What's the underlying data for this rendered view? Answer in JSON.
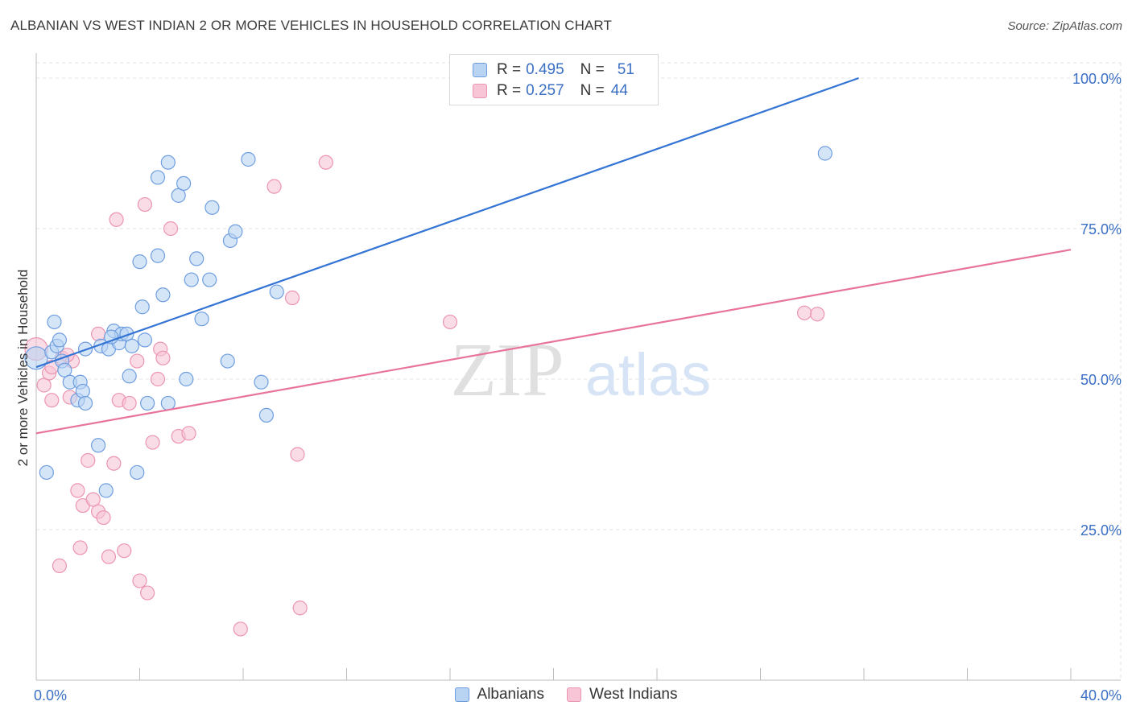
{
  "title": "ALBANIAN VS WEST INDIAN 2 OR MORE VEHICLES IN HOUSEHOLD CORRELATION CHART",
  "source": "Source: ZipAtlas.com",
  "watermark": {
    "zip": "ZIP",
    "atlas": "atlas"
  },
  "legend": {
    "rows": [
      {
        "r_label": "R =",
        "r_value": "0.495",
        "n_label": "N =",
        "n_value": "51"
      },
      {
        "r_label": "R =",
        "r_value": "0.257",
        "n_label": "N =",
        "n_value": "44"
      }
    ]
  },
  "bottom_legend": {
    "albanians": "Albanians",
    "west_indians": "West Indians"
  },
  "colors": {
    "albanian_fill": "#b9d3f3",
    "albanian_stroke": "#6f9ee0",
    "albanian_line": "#3474d4",
    "westindian_fill": "#f7c5d5",
    "westindian_stroke": "#ec95b2",
    "westindian_line": "#e8749c",
    "tick_label": "#3a6fc4",
    "grid": "#e3e3e3"
  },
  "chart_data": {
    "type": "scatter",
    "title": "ALBANIAN VS WEST INDIAN 2 OR MORE VEHICLES IN HOUSEHOLD CORRELATION CHART",
    "xlabel": "",
    "ylabel": "2 or more Vehicles in Household",
    "xlim": [
      0,
      40
    ],
    "ylim": [
      0,
      100
    ],
    "x_tick_labels": [
      {
        "value": 0,
        "label": "0.0%"
      },
      {
        "value": 40,
        "label": "40.0%"
      }
    ],
    "y_tick_labels": [
      {
        "value": 100,
        "label": "100.0%"
      },
      {
        "value": 75,
        "label": "75.0%"
      },
      {
        "value": 50,
        "label": "50.0%"
      },
      {
        "value": 25,
        "label": "25.0%"
      }
    ],
    "x_minor_ticks": [
      4,
      8,
      12,
      16,
      20,
      24,
      28,
      32,
      36,
      40
    ],
    "series": [
      {
        "name": "Albanians",
        "R": 0.495,
        "N": 51,
        "trend": {
          "x0": 0,
          "y0": 52.0,
          "x1": 31.8,
          "y1": 100
        },
        "points": [
          [
            0.0,
            53.5
          ],
          [
            0.4,
            34.5
          ],
          [
            0.6,
            54.5
          ],
          [
            0.7,
            59.5
          ],
          [
            0.8,
            55.5
          ],
          [
            0.9,
            56.5
          ],
          [
            1.0,
            53.0
          ],
          [
            1.1,
            51.5
          ],
          [
            1.3,
            49.5
          ],
          [
            1.6,
            46.5
          ],
          [
            1.7,
            49.5
          ],
          [
            1.8,
            48.0
          ],
          [
            1.9,
            46.0
          ],
          [
            2.4,
            39.0
          ],
          [
            2.5,
            55.5
          ],
          [
            2.7,
            31.5
          ],
          [
            2.8,
            55.0
          ],
          [
            3.0,
            58.0
          ],
          [
            3.2,
            56.0
          ],
          [
            3.3,
            57.5
          ],
          [
            3.5,
            57.5
          ],
          [
            3.6,
            50.5
          ],
          [
            3.7,
            55.5
          ],
          [
            3.9,
            34.5
          ],
          [
            4.2,
            56.5
          ],
          [
            4.3,
            46.0
          ],
          [
            4.0,
            69.5
          ],
          [
            4.1,
            62.0
          ],
          [
            4.7,
            70.5
          ],
          [
            4.9,
            64.0
          ],
          [
            5.1,
            46.0
          ],
          [
            4.7,
            83.5
          ],
          [
            5.1,
            86.0
          ],
          [
            5.5,
            80.5
          ],
          [
            5.7,
            82.5
          ],
          [
            5.8,
            50.0
          ],
          [
            6.0,
            66.5
          ],
          [
            6.2,
            70.0
          ],
          [
            6.4,
            60.0
          ],
          [
            6.7,
            66.5
          ],
          [
            6.8,
            78.5
          ],
          [
            7.4,
            53.0
          ],
          [
            7.5,
            73.0
          ],
          [
            7.7,
            74.5
          ],
          [
            8.2,
            86.5
          ],
          [
            8.7,
            49.5
          ],
          [
            8.9,
            44.0
          ],
          [
            9.3,
            64.5
          ],
          [
            1.9,
            55.0
          ],
          [
            30.5,
            87.5
          ],
          [
            2.9,
            57.0
          ]
        ]
      },
      {
        "name": "West Indians",
        "R": 0.257,
        "N": 44,
        "trend": {
          "x0": 0,
          "y0": 41.0,
          "x1": 40,
          "y1": 71.5
        },
        "points": [
          [
            0.0,
            55.0
          ],
          [
            0.3,
            49.0
          ],
          [
            0.5,
            51.0
          ],
          [
            0.6,
            46.5
          ],
          [
            0.9,
            19.0
          ],
          [
            1.0,
            53.5
          ],
          [
            1.4,
            53.0
          ],
          [
            1.3,
            47.0
          ],
          [
            1.6,
            31.5
          ],
          [
            1.7,
            22.0
          ],
          [
            1.8,
            29.0
          ],
          [
            2.0,
            36.5
          ],
          [
            2.2,
            30.0
          ],
          [
            2.4,
            57.5
          ],
          [
            2.4,
            28.0
          ],
          [
            2.6,
            27.0
          ],
          [
            2.8,
            20.5
          ],
          [
            3.0,
            36.0
          ],
          [
            3.1,
            76.5
          ],
          [
            3.2,
            46.5
          ],
          [
            3.4,
            21.5
          ],
          [
            3.6,
            46.0
          ],
          [
            3.9,
            53.0
          ],
          [
            4.0,
            16.5
          ],
          [
            4.2,
            79.0
          ],
          [
            4.3,
            14.5
          ],
          [
            4.5,
            39.5
          ],
          [
            4.7,
            50.0
          ],
          [
            4.8,
            55.0
          ],
          [
            4.9,
            53.5
          ],
          [
            5.2,
            75.0
          ],
          [
            5.5,
            40.5
          ],
          [
            5.9,
            41.0
          ],
          [
            7.9,
            8.5
          ],
          [
            9.2,
            82.0
          ],
          [
            9.9,
            63.5
          ],
          [
            10.1,
            37.5
          ],
          [
            10.2,
            12.0
          ],
          [
            11.2,
            86.0
          ],
          [
            16.0,
            59.5
          ],
          [
            29.7,
            61.0
          ],
          [
            30.2,
            60.8
          ],
          [
            0.6,
            52.0
          ],
          [
            1.2,
            54.0
          ]
        ]
      }
    ]
  }
}
